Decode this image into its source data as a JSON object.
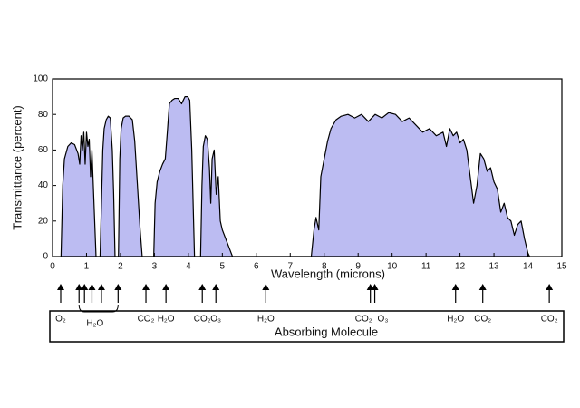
{
  "chart_data": {
    "type": "area",
    "xlabel": "Wavelength (microns)",
    "ylabel": "Transmittance (percent)",
    "color": "#bcbcf2",
    "x": [
      0.25,
      0.3,
      0.35,
      0.45,
      0.55,
      0.65,
      0.75,
      0.8,
      0.84,
      0.88,
      0.92,
      0.96,
      1.0,
      1.04,
      1.08,
      1.12,
      1.16,
      1.2,
      1.24,
      1.28,
      1.4,
      1.44,
      1.48,
      1.52,
      1.58,
      1.64,
      1.7,
      1.76,
      1.8,
      1.84,
      1.94,
      1.98,
      2.02,
      2.08,
      2.15,
      2.25,
      2.35,
      2.42,
      2.5,
      2.58,
      2.64,
      2.98,
      3.02,
      3.08,
      3.16,
      3.24,
      3.32,
      3.38,
      3.44,
      3.52,
      3.6,
      3.7,
      3.8,
      3.9,
      3.98,
      4.04,
      4.1,
      4.14,
      4.18,
      4.36,
      4.4,
      4.44,
      4.5,
      4.56,
      4.62,
      4.66,
      4.7,
      4.76,
      4.82,
      4.88,
      4.94,
      5.0,
      5.1,
      5.2,
      5.3,
      7.62,
      7.7,
      7.76,
      7.84,
      7.9,
      8.0,
      8.1,
      8.2,
      8.35,
      8.5,
      8.7,
      8.9,
      9.1,
      9.3,
      9.5,
      9.7,
      9.9,
      10.1,
      10.3,
      10.5,
      10.7,
      10.9,
      11.1,
      11.3,
      11.5,
      11.6,
      11.7,
      11.8,
      11.9,
      12.0,
      12.1,
      12.2,
      12.3,
      12.4,
      12.5,
      12.6,
      12.7,
      12.8,
      12.9,
      13.0,
      13.1,
      13.2,
      13.3,
      13.4,
      13.5,
      13.6,
      13.7,
      13.8,
      13.9,
      14.0,
      14.05
    ],
    "values": [
      0,
      40,
      55,
      62,
      64,
      63,
      58,
      52,
      68,
      60,
      70,
      52,
      70,
      62,
      66,
      45,
      60,
      40,
      20,
      0,
      0,
      30,
      60,
      72,
      77,
      79,
      78,
      60,
      35,
      0,
      0,
      55,
      72,
      78,
      79,
      79,
      77,
      65,
      40,
      15,
      0,
      0,
      30,
      42,
      48,
      52,
      55,
      70,
      86,
      88,
      89,
      89,
      86,
      90,
      90,
      88,
      60,
      30,
      0,
      0,
      40,
      62,
      68,
      66,
      50,
      30,
      55,
      60,
      35,
      45,
      20,
      15,
      10,
      5,
      0,
      0,
      15,
      22,
      15,
      45,
      55,
      65,
      72,
      77,
      79,
      80,
      78,
      80,
      76,
      80,
      78,
      81,
      80,
      76,
      78,
      74,
      70,
      72,
      68,
      70,
      62,
      72,
      68,
      70,
      64,
      66,
      60,
      45,
      30,
      40,
      58,
      55,
      48,
      50,
      42,
      38,
      25,
      30,
      22,
      20,
      12,
      18,
      20,
      10,
      2,
      0
    ],
    "xlim": [
      0,
      15
    ],
    "ylim": [
      0,
      100
    ],
    "xticks": [
      0,
      1,
      2,
      3,
      4,
      5,
      6,
      7,
      8,
      9,
      10,
      11,
      12,
      13,
      14,
      15
    ],
    "yticks": [
      0,
      20,
      40,
      60,
      80,
      100
    ],
    "absorbers_title": "Absorbing Molecule",
    "absorbers": [
      {
        "label": "O₂",
        "arrows": [
          0.24
        ]
      },
      {
        "label": "H₂O",
        "arrows": [
          0.78,
          0.94,
          1.16,
          1.44,
          1.93
        ]
      },
      {
        "label": "CO₂",
        "arrows": [
          2.75
        ]
      },
      {
        "label": "H₂O",
        "arrows": [
          3.34
        ]
      },
      {
        "label": "CO₂",
        "arrows": [
          4.41
        ]
      },
      {
        "label": "O₃",
        "arrows": [
          4.81
        ]
      },
      {
        "label": "H₂O",
        "arrows": [
          6.28
        ]
      },
      {
        "label": "CO₂",
        "arrows": [
          9.36
        ]
      },
      {
        "label": "O₃",
        "arrows": [
          9.49
        ]
      },
      {
        "label": "H₂O",
        "arrows": [
          11.87
        ]
      },
      {
        "label": "CO₂",
        "arrows": [
          12.67
        ]
      },
      {
        "label": "CO₂",
        "arrows": [
          14.63
        ]
      }
    ]
  }
}
